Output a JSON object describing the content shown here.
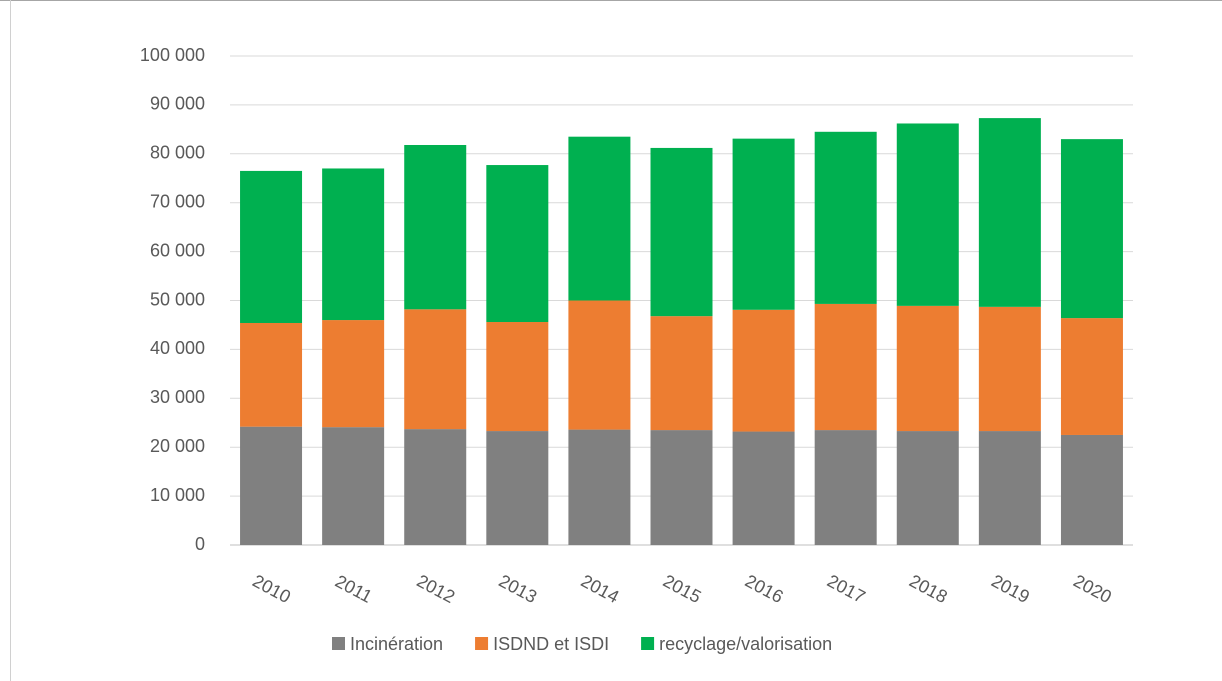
{
  "chart_data": {
    "type": "stacked_bar",
    "categories": [
      "2010",
      "2011",
      "2012",
      "2013",
      "2014",
      "2015",
      "2016",
      "2017",
      "2018",
      "2019",
      "2020"
    ],
    "series": [
      {
        "name": "Incinération",
        "color": "#808080",
        "values": [
          24200,
          24100,
          23700,
          23300,
          23600,
          23500,
          23200,
          23500,
          23300,
          23300,
          22500
        ]
      },
      {
        "name": "ISDND et ISDI",
        "color": "#ed7d31",
        "values": [
          21200,
          21900,
          24500,
          22300,
          26400,
          23300,
          24900,
          25800,
          25600,
          25400,
          23900
        ]
      },
      {
        "name": "recyclage/valorisation",
        "color": "#00b050",
        "values": [
          31100,
          31000,
          33600,
          32100,
          33500,
          34400,
          35000,
          35200,
          37300,
          38600,
          36600
        ]
      }
    ],
    "ylim": [
      0,
      100000
    ],
    "yticks": [
      0,
      {
        "value": 10000,
        "label": "10 000"
      },
      {
        "value": 20000,
        "label": "20 000"
      },
      {
        "value": 30000,
        "label": "30 000"
      },
      {
        "value": 40000,
        "label": "40 000"
      },
      {
        "value": 50000,
        "label": "50 000"
      },
      {
        "value": 60000,
        "label": "60 000"
      },
      {
        "value": 70000,
        "label": "70 000"
      },
      {
        "value": 80000,
        "label": "80 000"
      },
      {
        "value": 90000,
        "label": "90 000"
      },
      {
        "value": 100000,
        "label": "100 000"
      }
    ],
    "grid": true,
    "legend": "bottom"
  }
}
